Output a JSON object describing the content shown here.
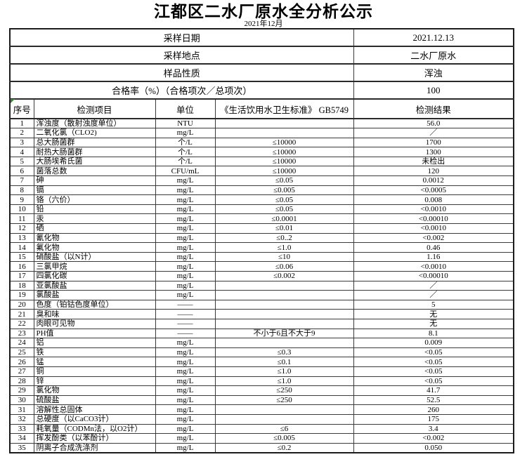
{
  "title": "江都区二水厂原水全分析公示",
  "subtitle": "2021年12月",
  "info_rows": [
    {
      "label": "采样日期",
      "value": "2021.12.13"
    },
    {
      "label": "采样地点",
      "value": "二水厂原水"
    },
    {
      "label": "样品性质",
      "value": "浑浊"
    },
    {
      "label": "合格率（%）（合格项次／总项次）",
      "value": "100"
    }
  ],
  "columns": [
    "序号",
    "检测项目",
    "单位",
    "《生活饮用水卫生标准》 GB5749",
    "检测结果"
  ],
  "rows": [
    [
      "1",
      "浑浊度（散射浊度单位）",
      "NTU",
      "",
      "56.0"
    ],
    [
      "2",
      "二氧化氯（CLO2)",
      "mg/L",
      "",
      "／"
    ],
    [
      "3",
      "总大肠菌群",
      "个/L",
      "≤10000",
      "1700"
    ],
    [
      "4",
      "耐热大肠菌群",
      "个/L",
      "≤10000",
      "1300"
    ],
    [
      "5",
      "大肠埃希氏菌",
      "个/L",
      "≤10000",
      "未检出"
    ],
    [
      "6",
      "菌落总数",
      "CFU/mL",
      "≤10000",
      "120"
    ],
    [
      "7",
      "砷",
      "mg/L",
      "≤0.05",
      "0.0012"
    ],
    [
      "8",
      "镉",
      "mg/L",
      "≤0.005",
      "<0.0005"
    ],
    [
      "9",
      "铬（六价）",
      "mg/L",
      "≤0.05",
      "0.008"
    ],
    [
      "10",
      "铅",
      "mg/L",
      "≤0.05",
      "<0.0010"
    ],
    [
      "11",
      "汞",
      "mg/L",
      "≤0.0001",
      "<0.00010"
    ],
    [
      "12",
      "硒",
      "mg/L",
      "≤0.01",
      "<0.0010"
    ],
    [
      "13",
      "氰化物",
      "mg/L",
      "≤0..2",
      "<0.002"
    ],
    [
      "14",
      "氟化物",
      "mg/L",
      "≤1.0",
      "0.46"
    ],
    [
      "15",
      "硝酸盐（以N计）",
      "mg/L",
      "≤10",
      "1.16"
    ],
    [
      "16",
      "三氯甲烷",
      "mg/L",
      "≤0.06",
      "<0.0010"
    ],
    [
      "17",
      "四氯化碳",
      "mg/L",
      "≤0.002",
      "<0.00010"
    ],
    [
      "18",
      "亚氯酸盐",
      "mg/L",
      "",
      "／"
    ],
    [
      "19",
      "氯酸盐",
      "mg/L",
      "",
      "／"
    ],
    [
      "20",
      "色度（铂钴色度单位）",
      "——",
      "",
      "5"
    ],
    [
      "21",
      "臭和味",
      "——",
      "",
      "无"
    ],
    [
      "22",
      "肉眼可见物",
      "——",
      "",
      "无"
    ],
    [
      "23",
      "PH值",
      "——",
      "不小于6且不大于9",
      "8.1"
    ],
    [
      "24",
      "铝",
      "mg/L",
      "",
      "0.009"
    ],
    [
      "25",
      "铁",
      "mg/L",
      "≤0.3",
      "<0.05"
    ],
    [
      "26",
      "锰",
      "mg/L",
      "≤0.1",
      "<0.05"
    ],
    [
      "27",
      "铜",
      "mg/L",
      "≤1.0",
      "<0.05"
    ],
    [
      "28",
      "锌",
      "mg/L",
      "≤1.0",
      "<0.05"
    ],
    [
      "29",
      "氯化物",
      "mg/L",
      "≤250",
      "41.7"
    ],
    [
      "30",
      "硫酸盐",
      "mg/L",
      "≤250",
      "52.5"
    ],
    [
      "31",
      "溶解性总固体",
      "mg/L",
      "",
      "260"
    ],
    [
      "32",
      "总硬度（以CaCO3计）",
      "mg/L",
      "",
      "175"
    ],
    [
      "33",
      "耗氧量（CODMn法，以O2计）",
      "mg/L",
      "≤6",
      "3.4"
    ],
    [
      "34",
      "挥发酚类（以苯酚计）",
      "mg/L",
      "≤0.005",
      "<0.002"
    ],
    [
      "35",
      "阴离子合成洗涤剂",
      "mg/L",
      "≤0.2",
      "0.050"
    ]
  ]
}
